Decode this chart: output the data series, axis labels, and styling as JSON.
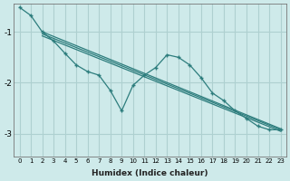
{
  "xlabel": "Humidex (Indice chaleur)",
  "ylabel": "",
  "bg_color": "#ceeaea",
  "grid_color": "#aed0d0",
  "line_color": "#2d7d7d",
  "xlim": [
    -0.5,
    23.5
  ],
  "ylim": [
    -3.45,
    -0.45
  ],
  "yticks": [
    -3,
    -2,
    -1
  ],
  "xticks": [
    0,
    1,
    2,
    3,
    4,
    5,
    6,
    7,
    8,
    9,
    10,
    11,
    12,
    13,
    14,
    15,
    16,
    17,
    18,
    19,
    20,
    21,
    22,
    23
  ],
  "zigzag_x": [
    0,
    1,
    2,
    3,
    4,
    5,
    6,
    7,
    8,
    9,
    10,
    11,
    12,
    13,
    14,
    15,
    16,
    17,
    18,
    19,
    20,
    21,
    22,
    23
  ],
  "zigzag_y": [
    -0.52,
    -0.68,
    -1.0,
    -1.18,
    -1.42,
    -1.65,
    -1.78,
    -1.85,
    -2.15,
    -2.55,
    -2.05,
    -1.85,
    -1.7,
    -1.45,
    -1.5,
    -1.65,
    -1.9,
    -2.2,
    -2.35,
    -2.55,
    -2.7,
    -2.85,
    -2.92,
    -2.92
  ],
  "line1_x": [
    2,
    23
  ],
  "line1_y": [
    -1.0,
    -2.9
  ],
  "line2_x": [
    2,
    23
  ],
  "line2_y": [
    -1.04,
    -2.92
  ],
  "line3_x": [
    2,
    23
  ],
  "line3_y": [
    -1.08,
    -2.95
  ]
}
